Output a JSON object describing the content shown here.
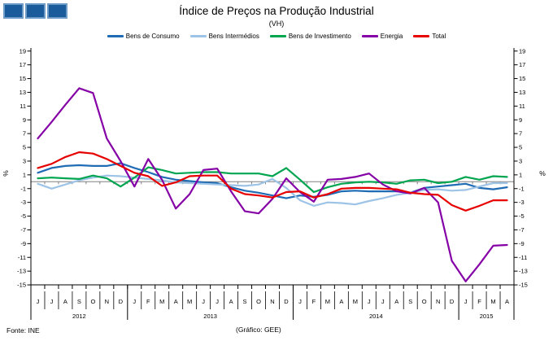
{
  "logo": {
    "square_count": 3,
    "color": "#1a5b9c"
  },
  "footer": {
    "source": "Fonte: INE",
    "credit": "(Gráfico: GEE)"
  },
  "chart_data": {
    "type": "line",
    "title": "Índice de Preços na Produção Industrial",
    "subtitle": "(VH)",
    "xlabel": "",
    "ylabel": "%",
    "ylabel_right": "%",
    "ylim": [
      -15,
      19
    ],
    "ytick_step": 2,
    "grid": "zero-line-only",
    "legend_position": "top",
    "axis_color": "#000000",
    "zero_line_color": "#808080",
    "categories": [
      "J",
      "J",
      "A",
      "S",
      "O",
      "N",
      "D",
      "J",
      "F",
      "M",
      "A",
      "M",
      "J",
      "J",
      "A",
      "S",
      "O",
      "N",
      "D",
      "J",
      "F",
      "M",
      "A",
      "M",
      "J",
      "J",
      "A",
      "S",
      "O",
      "N",
      "D",
      "J",
      "F",
      "M",
      "A"
    ],
    "years": [
      {
        "label": "2012",
        "start": 0,
        "count": 7
      },
      {
        "label": "2013",
        "start": 7,
        "count": 12
      },
      {
        "label": "2014",
        "start": 19,
        "count": 12
      },
      {
        "label": "2015",
        "start": 31,
        "count": 4
      }
    ],
    "series": [
      {
        "name": "Bens de Consumo",
        "color": "#1f6cb5",
        "values": [
          1.3,
          2.0,
          2.3,
          2.4,
          2.3,
          2.3,
          2.7,
          2.0,
          1.4,
          0.7,
          0.3,
          0.1,
          -0.1,
          -0.2,
          -0.8,
          -1.3,
          -1.6,
          -2.0,
          -2.4,
          -2.0,
          -2.2,
          -1.9,
          -1.4,
          -1.3,
          -1.4,
          -1.4,
          -1.4,
          -1.6,
          -0.9,
          -0.7,
          -0.5,
          -0.3,
          -0.9,
          -1.1,
          -0.8
        ]
      },
      {
        "name": "Bens Intermédios",
        "color": "#9dc3e6",
        "values": [
          -0.3,
          -1.0,
          -0.4,
          0.2,
          0.6,
          0.9,
          0.8,
          0.6,
          0.4,
          0.2,
          -0.1,
          -0.2,
          -0.3,
          -0.4,
          -0.5,
          -0.6,
          -0.4,
          0.4,
          -0.9,
          -2.7,
          -3.5,
          -3.0,
          -3.1,
          -3.3,
          -2.8,
          -2.4,
          -1.9,
          -1.6,
          -1.2,
          -1.1,
          -1.3,
          -1.2,
          -0.7,
          -0.2,
          -0.2
        ]
      },
      {
        "name": "Bens de Investimento",
        "color": "#00a550",
        "values": [
          0.5,
          0.6,
          0.5,
          0.4,
          0.9,
          0.5,
          -0.7,
          0.6,
          2.1,
          1.7,
          1.2,
          1.3,
          1.4,
          1.4,
          1.2,
          1.2,
          1.2,
          0.8,
          2.0,
          0.3,
          -1.5,
          -0.8,
          -0.3,
          -0.1,
          0.0,
          -0.1,
          -0.3,
          0.2,
          0.3,
          -0.2,
          0.0,
          0.7,
          0.3,
          0.8,
          0.7
        ]
      },
      {
        "name": "Energia",
        "color": "#8500a6",
        "values": [
          6.3,
          8.7,
          11.2,
          13.6,
          12.9,
          6.3,
          3.0,
          -0.7,
          3.3,
          0.3,
          -3.9,
          -1.8,
          1.7,
          1.9,
          -1.4,
          -4.3,
          -4.6,
          -2.5,
          0.5,
          -1.5,
          -2.9,
          0.3,
          0.4,
          0.7,
          1.2,
          -0.4,
          -1.4,
          -1.7,
          -0.9,
          -3.0,
          -11.5,
          -14.5,
          -12.0,
          -9.3,
          -9.2
        ]
      },
      {
        "name": "Total",
        "color": "#e60000",
        "values": [
          2.0,
          2.6,
          3.6,
          4.3,
          4.1,
          3.3,
          2.3,
          1.3,
          0.8,
          -0.6,
          -0.1,
          0.8,
          0.9,
          0.9,
          -1.0,
          -1.8,
          -2.0,
          -2.3,
          -1.5,
          -1.4,
          -2.3,
          -1.8,
          -1.0,
          -0.9,
          -0.9,
          -1.0,
          -1.1,
          -1.6,
          -1.8,
          -1.9,
          -3.4,
          -4.2,
          -3.5,
          -2.7,
          -2.7
        ]
      }
    ]
  }
}
